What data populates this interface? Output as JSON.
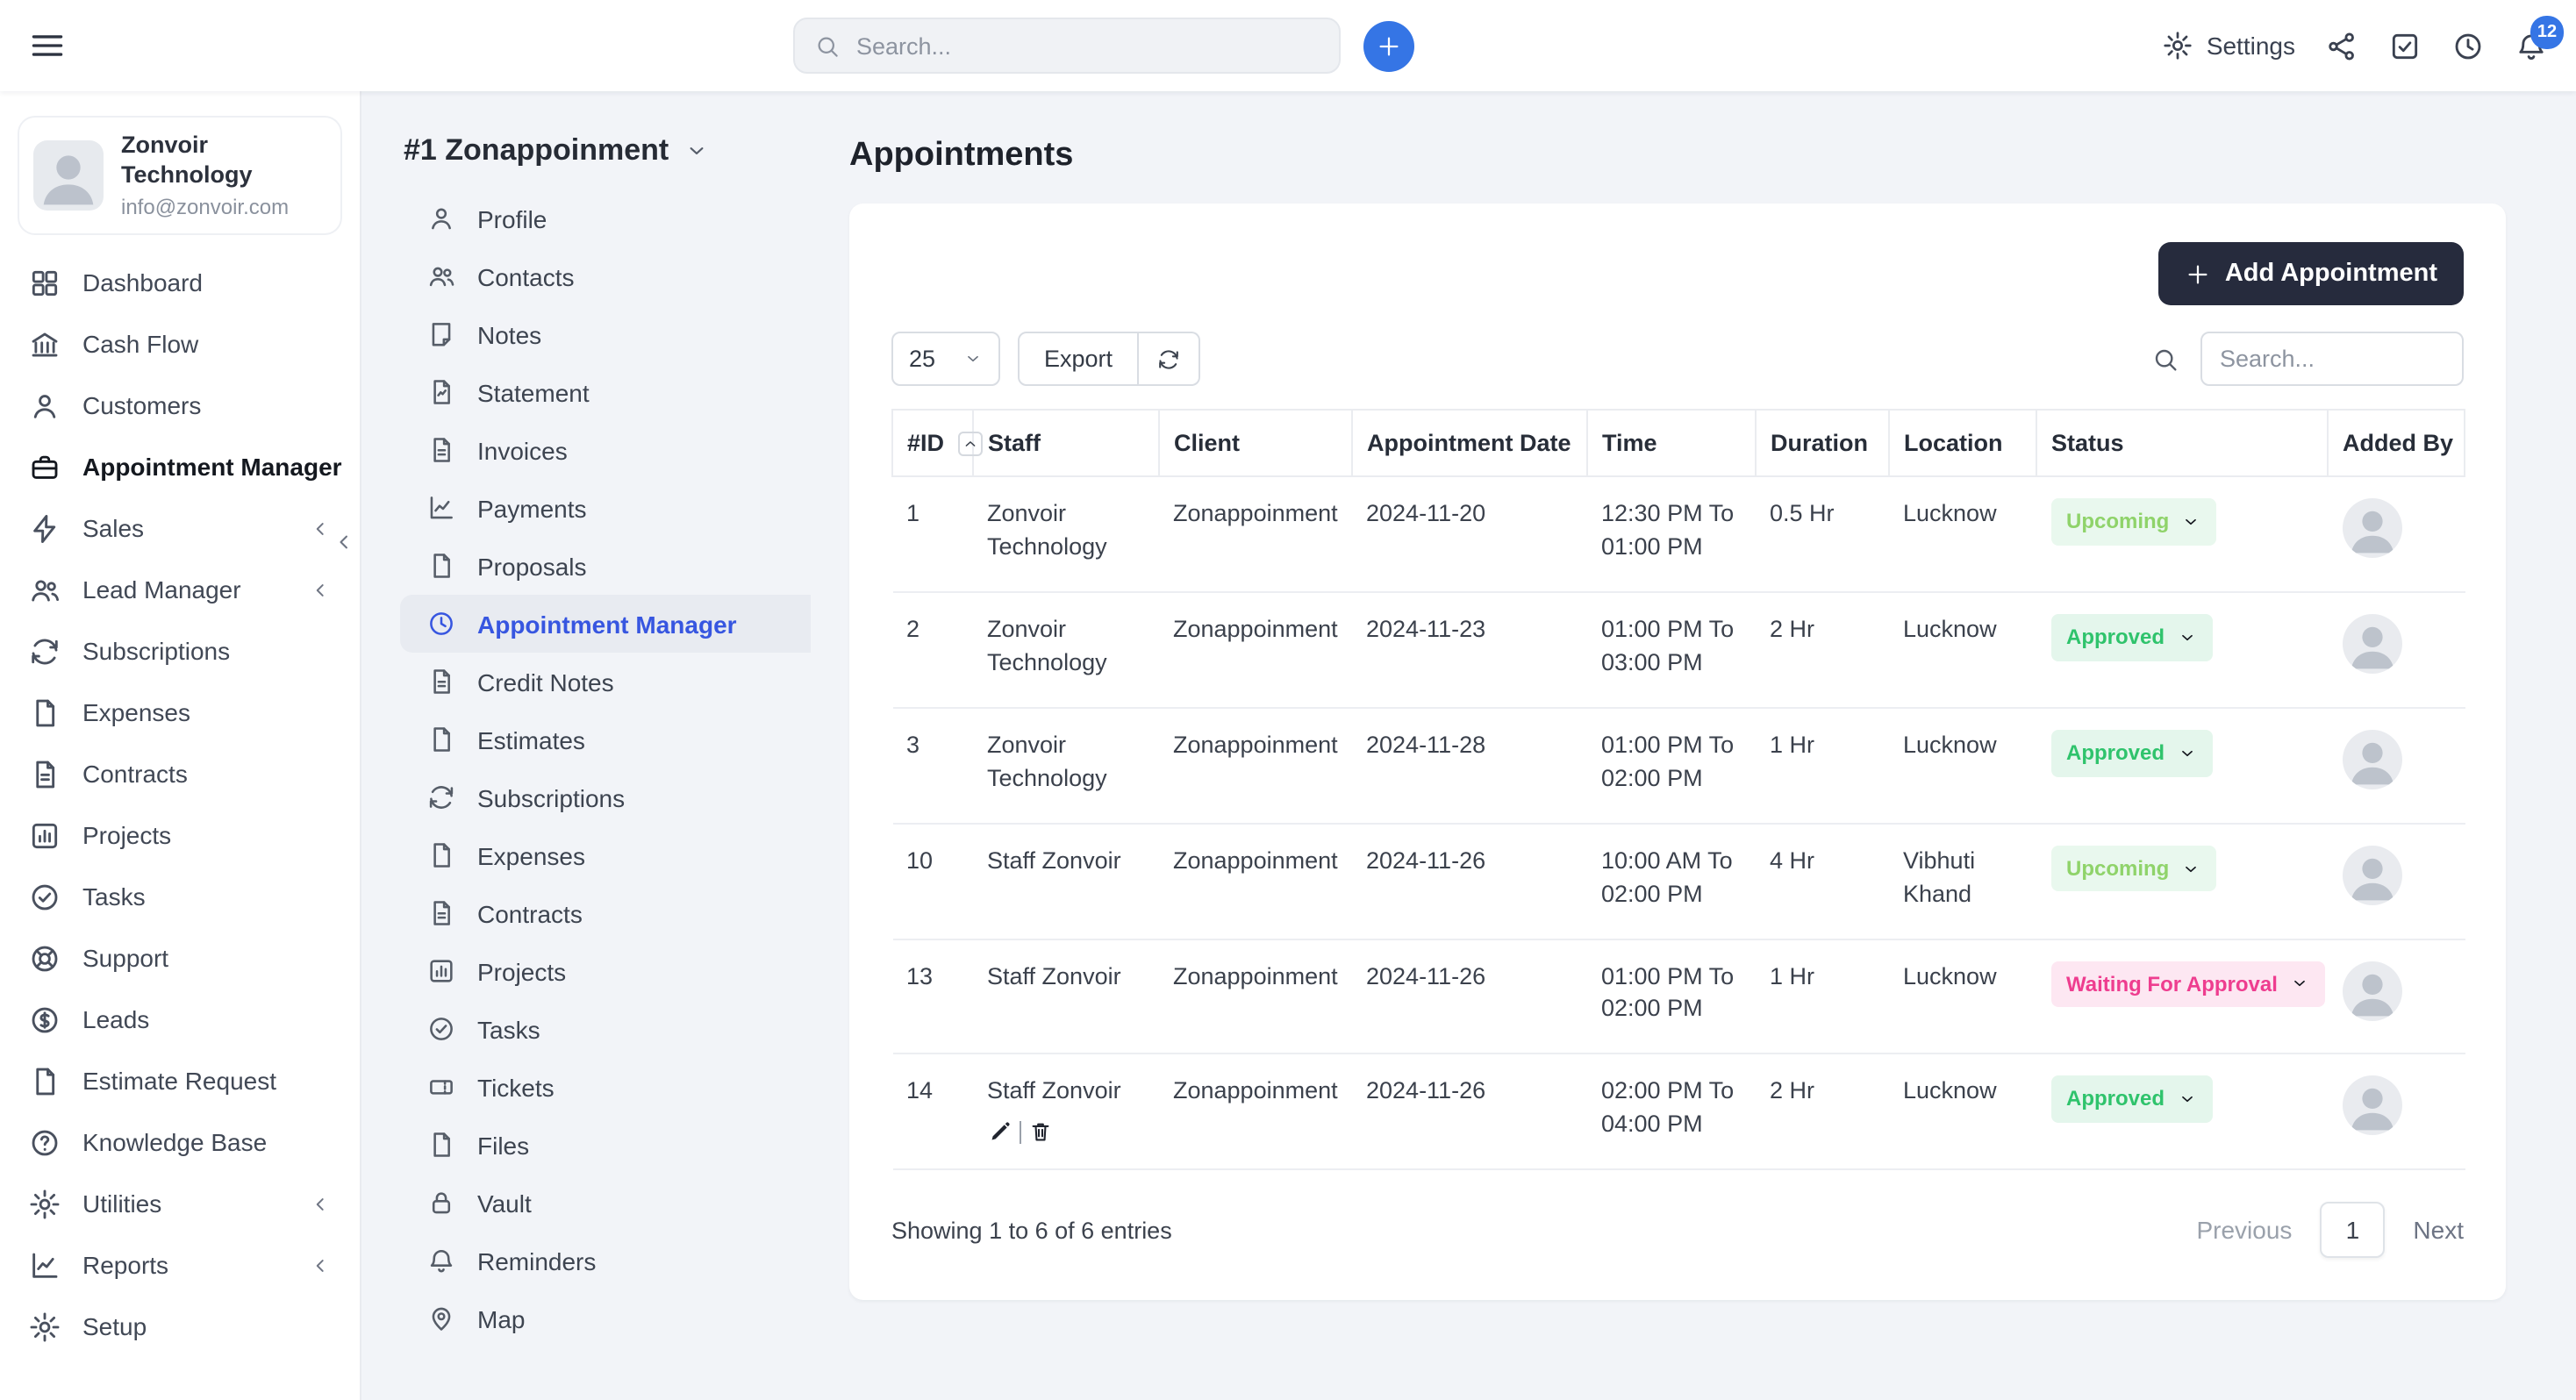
{
  "colors": {
    "accent_blue": "#3575e5",
    "active_link_blue": "#3756e0",
    "dark_button": "#262b3d",
    "status_green": "#2fc36c",
    "status_light_green": "#8fd36a",
    "status_pink": "#ee3d8f"
  },
  "topbar": {
    "search_placeholder": "Search...",
    "settings_label": "Settings",
    "notification_count": "12"
  },
  "workspace": {
    "name": "Zonvoir Technology",
    "email": "info@zonvoir.com"
  },
  "sidebar": {
    "items": [
      {
        "label": "Dashboard",
        "icon": "grid"
      },
      {
        "label": "Cash Flow",
        "icon": "bank"
      },
      {
        "label": "Customers",
        "icon": "user"
      },
      {
        "label": "Appointment Manager",
        "icon": "briefcase",
        "active": "active"
      },
      {
        "label": "Sales",
        "icon": "bolt",
        "chevron": true
      },
      {
        "label": "Lead Manager",
        "icon": "users",
        "chevron": true
      },
      {
        "label": "Subscriptions",
        "icon": "refresh"
      },
      {
        "label": "Expenses",
        "icon": "doc"
      },
      {
        "label": "Contracts",
        "icon": "docline"
      },
      {
        "label": "Projects",
        "icon": "chartbox"
      },
      {
        "label": "Tasks",
        "icon": "checkcircle"
      },
      {
        "label": "Support",
        "icon": "lifebuoy"
      },
      {
        "label": "Leads",
        "icon": "dollar"
      },
      {
        "label": "Estimate Request",
        "icon": "doc"
      },
      {
        "label": "Knowledge Base",
        "icon": "question"
      },
      {
        "label": "Utilities",
        "icon": "gear",
        "chevron": true
      },
      {
        "label": "Reports",
        "icon": "report",
        "chevron": true
      },
      {
        "label": "Setup",
        "icon": "gear"
      }
    ]
  },
  "client_panel": {
    "title": "#1 Zonappoinment",
    "items": [
      {
        "label": "Profile",
        "icon": "user"
      },
      {
        "label": "Contacts",
        "icon": "users"
      },
      {
        "label": "Notes",
        "icon": "note"
      },
      {
        "label": "Statement",
        "icon": "statement"
      },
      {
        "label": "Invoices",
        "icon": "docline"
      },
      {
        "label": "Payments",
        "icon": "report"
      },
      {
        "label": "Proposals",
        "icon": "doc"
      },
      {
        "label": "Appointment Manager",
        "icon": "clock",
        "active": "active"
      },
      {
        "label": "Credit Notes",
        "icon": "docline"
      },
      {
        "label": "Estimates",
        "icon": "doc"
      },
      {
        "label": "Subscriptions",
        "icon": "refresh"
      },
      {
        "label": "Expenses",
        "icon": "doc"
      },
      {
        "label": "Contracts",
        "icon": "docline"
      },
      {
        "label": "Projects",
        "icon": "chartbox"
      },
      {
        "label": "Tasks",
        "icon": "checkcircle"
      },
      {
        "label": "Tickets",
        "icon": "ticket"
      },
      {
        "label": "Files",
        "icon": "doc"
      },
      {
        "label": "Vault",
        "icon": "lock"
      },
      {
        "label": "Reminders",
        "icon": "bell"
      },
      {
        "label": "Map",
        "icon": "pin"
      }
    ]
  },
  "main": {
    "page_title": "Appointments",
    "add_button_label": "Add Appointment",
    "page_size": "25",
    "export_label": "Export",
    "table_search_placeholder": "Search...",
    "columns": [
      "#ID",
      "Staff",
      "Client",
      "Appointment Date",
      "Time",
      "Duration",
      "Location",
      "Status",
      "Added By"
    ],
    "rows": [
      {
        "id": "1",
        "staff": "Zonvoir Technology",
        "client": "Zonappoinment",
        "date": "2024-11-20",
        "time": "12:30 PM To 01:00 PM",
        "duration": "0.5 Hr",
        "location": "Lucknow",
        "status": "Upcoming",
        "status_type": "upcoming"
      },
      {
        "id": "2",
        "staff": "Zonvoir Technology",
        "client": "Zonappoinment",
        "date": "2024-11-23",
        "time": "01:00 PM To 03:00 PM",
        "duration": "2 Hr",
        "location": "Lucknow",
        "status": "Approved",
        "status_type": "approved"
      },
      {
        "id": "3",
        "staff": "Zonvoir Technology",
        "client": "Zonappoinment",
        "date": "2024-11-28",
        "time": "01:00 PM To 02:00 PM",
        "duration": "1 Hr",
        "location": "Lucknow",
        "status": "Approved",
        "status_type": "approved"
      },
      {
        "id": "10",
        "staff": "Staff Zonvoir",
        "client": "Zonappoinment",
        "date": "2024-11-26",
        "time": "10:00 AM To 02:00 PM",
        "duration": "4 Hr",
        "location": "Vibhuti Khand",
        "status": "Upcoming",
        "status_type": "upcoming"
      },
      {
        "id": "13",
        "staff": "Staff Zonvoir",
        "client": "Zonappoinment",
        "date": "2024-11-26",
        "time": "01:00 PM To 02:00 PM",
        "duration": "1 Hr",
        "location": "Lucknow",
        "status": "Waiting For Approval",
        "status_type": "waiting"
      },
      {
        "id": "14",
        "staff": "Staff Zonvoir",
        "client": "Zonappoinment",
        "date": "2024-11-26",
        "time": "02:00 PM To 04:00 PM",
        "duration": "2 Hr",
        "location": "Lucknow",
        "status": "Approved",
        "status_type": "approved",
        "has_actions": true
      }
    ],
    "footer": {
      "showing": "Showing 1 to 6 of 6 entries",
      "previous": "Previous",
      "page": "1",
      "next": "Next"
    }
  }
}
